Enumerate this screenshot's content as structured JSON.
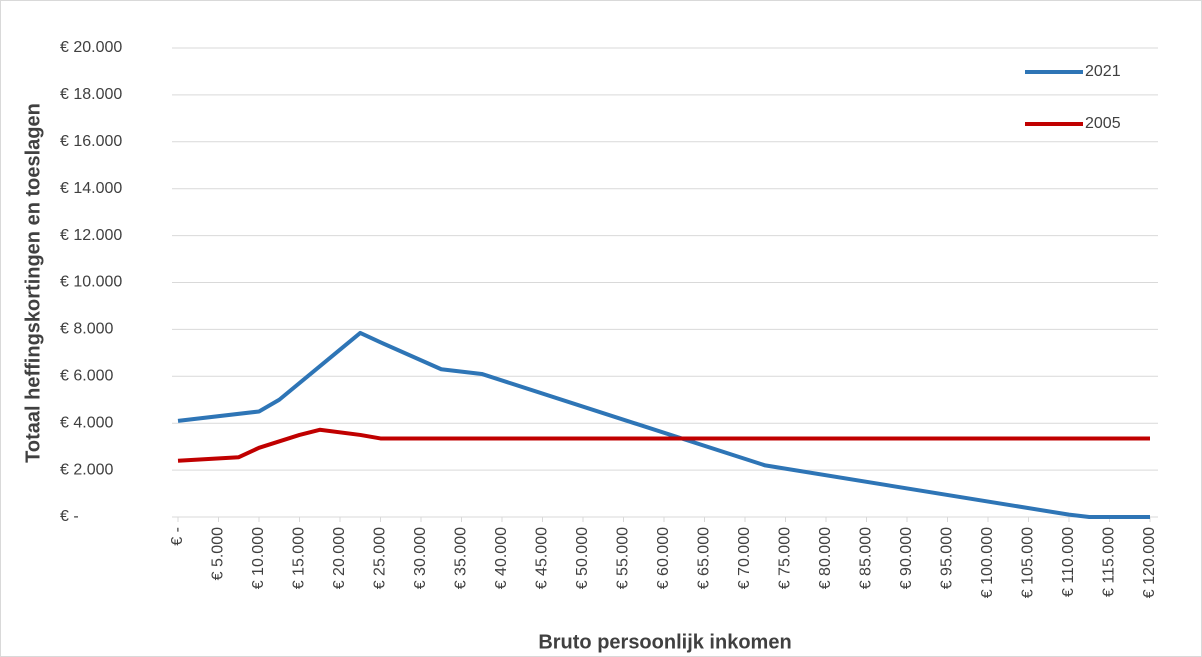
{
  "chart_data": {
    "type": "line",
    "x_label": "Bruto persoonlijk inkomen",
    "y_label": "Totaal heffingskortingen en toeslagen",
    "series": [
      {
        "name": "2021",
        "color": "#2e75b6",
        "x": [
          0,
          10000,
          12500,
          22500,
          25000,
          32500,
          37500,
          72500,
          110000,
          112500,
          120000
        ],
        "values": [
          4100,
          4500,
          5000,
          7850,
          7450,
          6300,
          6100,
          2200,
          100,
          0,
          0
        ]
      },
      {
        "name": "2005",
        "color": "#c00000",
        "x": [
          0,
          7500,
          10000,
          15000,
          17500,
          22500,
          25000,
          120000
        ],
        "values": [
          2400,
          2550,
          2950,
          3500,
          3720,
          3500,
          3350,
          3350
        ]
      }
    ],
    "xlim": [
      0,
      120000
    ],
    "xticks": [
      {
        "value": 0,
        "label": "€ -"
      },
      {
        "value": 5000,
        "label": "€ 5.000"
      },
      {
        "value": 10000,
        "label": "€ 10.000"
      },
      {
        "value": 15000,
        "label": "€ 15.000"
      },
      {
        "value": 20000,
        "label": "€ 20.000"
      },
      {
        "value": 25000,
        "label": "€ 25.000"
      },
      {
        "value": 30000,
        "label": "€ 30.000"
      },
      {
        "value": 35000,
        "label": "€ 35.000"
      },
      {
        "value": 40000,
        "label": "€ 40.000"
      },
      {
        "value": 45000,
        "label": "€ 45.000"
      },
      {
        "value": 50000,
        "label": "€ 50.000"
      },
      {
        "value": 55000,
        "label": "€ 55.000"
      },
      {
        "value": 60000,
        "label": "€ 60.000"
      },
      {
        "value": 65000,
        "label": "€ 65.000"
      },
      {
        "value": 70000,
        "label": "€ 70.000"
      },
      {
        "value": 75000,
        "label": "€ 75.000"
      },
      {
        "value": 80000,
        "label": "€ 80.000"
      },
      {
        "value": 85000,
        "label": "€ 85.000"
      },
      {
        "value": 90000,
        "label": "€ 90.000"
      },
      {
        "value": 95000,
        "label": "€ 95.000"
      },
      {
        "value": 100000,
        "label": "€ 100.000"
      },
      {
        "value": 105000,
        "label": "€ 105.000"
      },
      {
        "value": 110000,
        "label": "€ 110.000"
      },
      {
        "value": 115000,
        "label": "€ 115.000"
      },
      {
        "value": 120000,
        "label": "€ 120.000"
      }
    ],
    "ylim": [
      0,
      20000
    ],
    "yticks": [
      {
        "value": 0,
        "label": "€ -"
      },
      {
        "value": 2000,
        "label": "€ 2.000"
      },
      {
        "value": 4000,
        "label": "€ 4.000"
      },
      {
        "value": 6000,
        "label": "€ 6.000"
      },
      {
        "value": 8000,
        "label": "€ 8.000"
      },
      {
        "value": 10000,
        "label": "€ 10.000"
      },
      {
        "value": 12000,
        "label": "€ 12.000"
      },
      {
        "value": 14000,
        "label": "€ 14.000"
      },
      {
        "value": 16000,
        "label": "€ 16.000"
      },
      {
        "value": 18000,
        "label": "€ 18.000"
      },
      {
        "value": 20000,
        "label": "€ 20.000"
      }
    ],
    "grid": true,
    "legend": "top-right"
  }
}
